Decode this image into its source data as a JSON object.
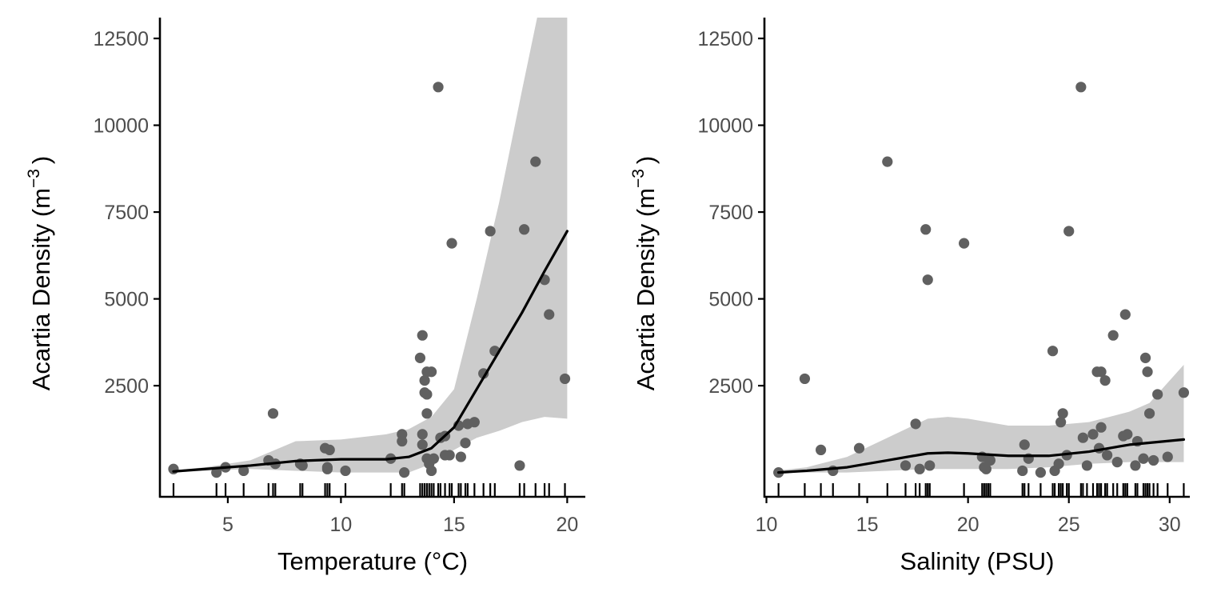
{
  "colors": {
    "point": "#606060",
    "smooth": "#000000",
    "ribbon": "#cccccc",
    "axis": "#000000",
    "tick_label": "#4d4d4d"
  },
  "chart_data": [
    {
      "type": "scatter",
      "title": "",
      "xlabel": "Temperature (°C)",
      "ylabel_main": "Acartia Density (m",
      "ylabel_sup": "−3",
      "ylabel_close": ")",
      "xlim": [
        2,
        20.8
      ],
      "ylim": [
        -700,
        13100
      ],
      "xticks": [
        5,
        10,
        15,
        20
      ],
      "xtick_labels": [
        "5",
        "10",
        "15",
        "20"
      ],
      "yticks": [
        2500,
        5000,
        7500,
        10000,
        12500
      ],
      "ytick_labels": [
        "2500",
        "5000",
        "7500",
        "10000",
        "12500"
      ],
      "grid": false,
      "legend": "none",
      "points": [
        [
          2.6,
          100
        ],
        [
          4.5,
          0
        ],
        [
          4.9,
          150
        ],
        [
          5.7,
          50
        ],
        [
          6.8,
          350
        ],
        [
          7.0,
          1700
        ],
        [
          7.1,
          250
        ],
        [
          8.2,
          250
        ],
        [
          8.3,
          200
        ],
        [
          9.3,
          700
        ],
        [
          9.4,
          150
        ],
        [
          9.4,
          100
        ],
        [
          9.5,
          650
        ],
        [
          10.2,
          50
        ],
        [
          12.2,
          400
        ],
        [
          12.7,
          1100
        ],
        [
          12.7,
          900
        ],
        [
          12.8,
          0
        ],
        [
          13.5,
          3300
        ],
        [
          13.6,
          3950
        ],
        [
          13.6,
          1100
        ],
        [
          13.6,
          800
        ],
        [
          13.7,
          2650
        ],
        [
          13.7,
          2300
        ],
        [
          13.8,
          2900
        ],
        [
          13.8,
          2250
        ],
        [
          13.8,
          1700
        ],
        [
          13.8,
          400
        ],
        [
          13.9,
          250
        ],
        [
          14.0,
          2900
        ],
        [
          14.0,
          50
        ],
        [
          14.1,
          400
        ],
        [
          14.3,
          11100
        ],
        [
          14.4,
          1000
        ],
        [
          14.6,
          1050
        ],
        [
          14.6,
          500
        ],
        [
          14.8,
          500
        ],
        [
          14.9,
          6600
        ],
        [
          15.2,
          1350
        ],
        [
          15.3,
          450
        ],
        [
          15.5,
          850
        ],
        [
          15.6,
          1400
        ],
        [
          15.9,
          1450
        ],
        [
          16.3,
          2850
        ],
        [
          16.6,
          6950
        ],
        [
          16.8,
          3500
        ],
        [
          17.9,
          200
        ],
        [
          18.1,
          7000
        ],
        [
          18.6,
          8950
        ],
        [
          19.0,
          5550
        ],
        [
          19.2,
          4550
        ],
        [
          19.9,
          2700
        ]
      ],
      "smooth": [
        [
          2.6,
          30
        ],
        [
          4,
          100
        ],
        [
          6,
          200
        ],
        [
          8,
          330
        ],
        [
          10,
          380
        ],
        [
          12,
          380
        ],
        [
          13,
          450
        ],
        [
          14,
          700
        ],
        [
          15,
          1300
        ],
        [
          16,
          2400
        ],
        [
          17,
          3500
        ],
        [
          18,
          4600
        ],
        [
          19,
          5800
        ],
        [
          20,
          6950
        ]
      ],
      "ribbon_lower": [
        [
          2.6,
          0
        ],
        [
          4,
          50
        ],
        [
          6,
          100
        ],
        [
          8,
          50
        ],
        [
          10,
          0
        ],
        [
          12,
          0
        ],
        [
          13,
          0
        ],
        [
          14,
          250
        ],
        [
          15,
          650
        ],
        [
          16,
          1000
        ],
        [
          17,
          1200
        ],
        [
          18,
          1450
        ],
        [
          19,
          1600
        ],
        [
          20,
          1550
        ]
      ],
      "ribbon_upper": [
        [
          2.6,
          60
        ],
        [
          4,
          150
        ],
        [
          6,
          350
        ],
        [
          8,
          900
        ],
        [
          10,
          950
        ],
        [
          12,
          1100
        ],
        [
          13,
          1250
        ],
        [
          14,
          1600
        ],
        [
          15,
          2400
        ],
        [
          16,
          5000
        ],
        [
          17,
          7800
        ],
        [
          18,
          11000
        ],
        [
          18.8,
          13500
        ],
        [
          20,
          13500
        ]
      ],
      "rug": [
        2.6,
        4.5,
        4.9,
        5.7,
        6.8,
        7.0,
        7.1,
        8.2,
        8.3,
        9.3,
        9.4,
        9.5,
        10.2,
        12.2,
        12.7,
        12.8,
        13.5,
        13.6,
        13.7,
        13.8,
        13.9,
        14.0,
        14.1,
        14.3,
        14.4,
        14.6,
        14.8,
        14.9,
        15.2,
        15.3,
        15.5,
        15.6,
        15.9,
        16.3,
        16.6,
        16.8,
        17.9,
        18.1,
        18.6,
        19.0,
        19.2,
        19.9
      ]
    },
    {
      "type": "scatter",
      "title": "",
      "xlabel": "Salinity (PSU)",
      "ylabel_main": "Acartia Density (m",
      "ylabel_sup": "−3",
      "ylabel_close": ")",
      "xlim": [
        9.9,
        31.0
      ],
      "ylim": [
        -700,
        13100
      ],
      "xticks": [
        10,
        15,
        20,
        25,
        30
      ],
      "xtick_labels": [
        "10",
        "15",
        "20",
        "25",
        "30"
      ],
      "yticks": [
        2500,
        5000,
        7500,
        10000,
        12500
      ],
      "ytick_labels": [
        "2500",
        "5000",
        "7500",
        "10000",
        "12500"
      ],
      "grid": false,
      "legend": "none",
      "points": [
        [
          10.6,
          0
        ],
        [
          11.9,
          2700
        ],
        [
          12.7,
          650
        ],
        [
          13.3,
          50
        ],
        [
          14.6,
          700
        ],
        [
          16.0,
          8950
        ],
        [
          16.9,
          200
        ],
        [
          17.4,
          1400
        ],
        [
          17.6,
          100
        ],
        [
          17.9,
          7000
        ],
        [
          18.0,
          5550
        ],
        [
          18.1,
          200
        ],
        [
          19.8,
          6600
        ],
        [
          20.7,
          450
        ],
        [
          20.8,
          150
        ],
        [
          20.9,
          100
        ],
        [
          21.0,
          400
        ],
        [
          21.1,
          350
        ],
        [
          22.7,
          50
        ],
        [
          22.8,
          800
        ],
        [
          23.0,
          400
        ],
        [
          23.6,
          0
        ],
        [
          24.2,
          3500
        ],
        [
          24.3,
          50
        ],
        [
          24.5,
          250
        ],
        [
          24.6,
          1450
        ],
        [
          24.7,
          1700
        ],
        [
          24.9,
          500
        ],
        [
          25.0,
          6950
        ],
        [
          25.6,
          11100
        ],
        [
          25.7,
          1000
        ],
        [
          25.9,
          200
        ],
        [
          26.2,
          1100
        ],
        [
          26.4,
          2900
        ],
        [
          26.5,
          700
        ],
        [
          26.6,
          1300
        ],
        [
          26.6,
          2900
        ],
        [
          26.8,
          2650
        ],
        [
          26.9,
          500
        ],
        [
          27.2,
          3950
        ],
        [
          27.4,
          300
        ],
        [
          27.7,
          1050
        ],
        [
          27.8,
          4550
        ],
        [
          27.9,
          1100
        ],
        [
          28.3,
          200
        ],
        [
          28.4,
          900
        ],
        [
          28.7,
          400
        ],
        [
          28.8,
          3300
        ],
        [
          28.9,
          2900
        ],
        [
          29.0,
          1700
        ],
        [
          29.2,
          350
        ],
        [
          29.4,
          2250
        ],
        [
          29.9,
          450
        ],
        [
          30.7,
          2300
        ]
      ],
      "smooth": [
        [
          10.6,
          0
        ],
        [
          12,
          50
        ],
        [
          14,
          150
        ],
        [
          16,
          350
        ],
        [
          18,
          550
        ],
        [
          19,
          570
        ],
        [
          20,
          550
        ],
        [
          22,
          480
        ],
        [
          24,
          480
        ],
        [
          26,
          600
        ],
        [
          28,
          800
        ],
        [
          30.7,
          950
        ]
      ],
      "ribbon_lower": [
        [
          10.6,
          0
        ],
        [
          12,
          0
        ],
        [
          14,
          0
        ],
        [
          16,
          50
        ],
        [
          18,
          100
        ],
        [
          20,
          100
        ],
        [
          22,
          100
        ],
        [
          24,
          150
        ],
        [
          26,
          250
        ],
        [
          28,
          300
        ],
        [
          30.7,
          300
        ]
      ],
      "ribbon_upper": [
        [
          10.6,
          60
        ],
        [
          12,
          150
        ],
        [
          14,
          450
        ],
        [
          16,
          1000
        ],
        [
          18,
          1550
        ],
        [
          19,
          1600
        ],
        [
          20,
          1550
        ],
        [
          22,
          1350
        ],
        [
          24,
          1350
        ],
        [
          26,
          1450
        ],
        [
          28,
          1750
        ],
        [
          29,
          2000
        ],
        [
          30.7,
          3100
        ]
      ],
      "rug": [
        10.6,
        11.9,
        12.7,
        13.3,
        14.6,
        16.0,
        16.9,
        17.4,
        17.6,
        17.9,
        18.0,
        18.1,
        19.8,
        20.7,
        20.8,
        20.9,
        21.0,
        21.1,
        22.7,
        22.8,
        23.0,
        23.6,
        24.2,
        24.3,
        24.5,
        24.6,
        24.7,
        24.9,
        25.0,
        25.6,
        25.7,
        25.9,
        26.2,
        26.4,
        26.5,
        26.6,
        26.8,
        26.9,
        27.2,
        27.4,
        27.7,
        27.8,
        27.9,
        28.3,
        28.4,
        28.7,
        28.8,
        28.9,
        29.0,
        29.2,
        29.4,
        29.9,
        30.7
      ]
    }
  ]
}
